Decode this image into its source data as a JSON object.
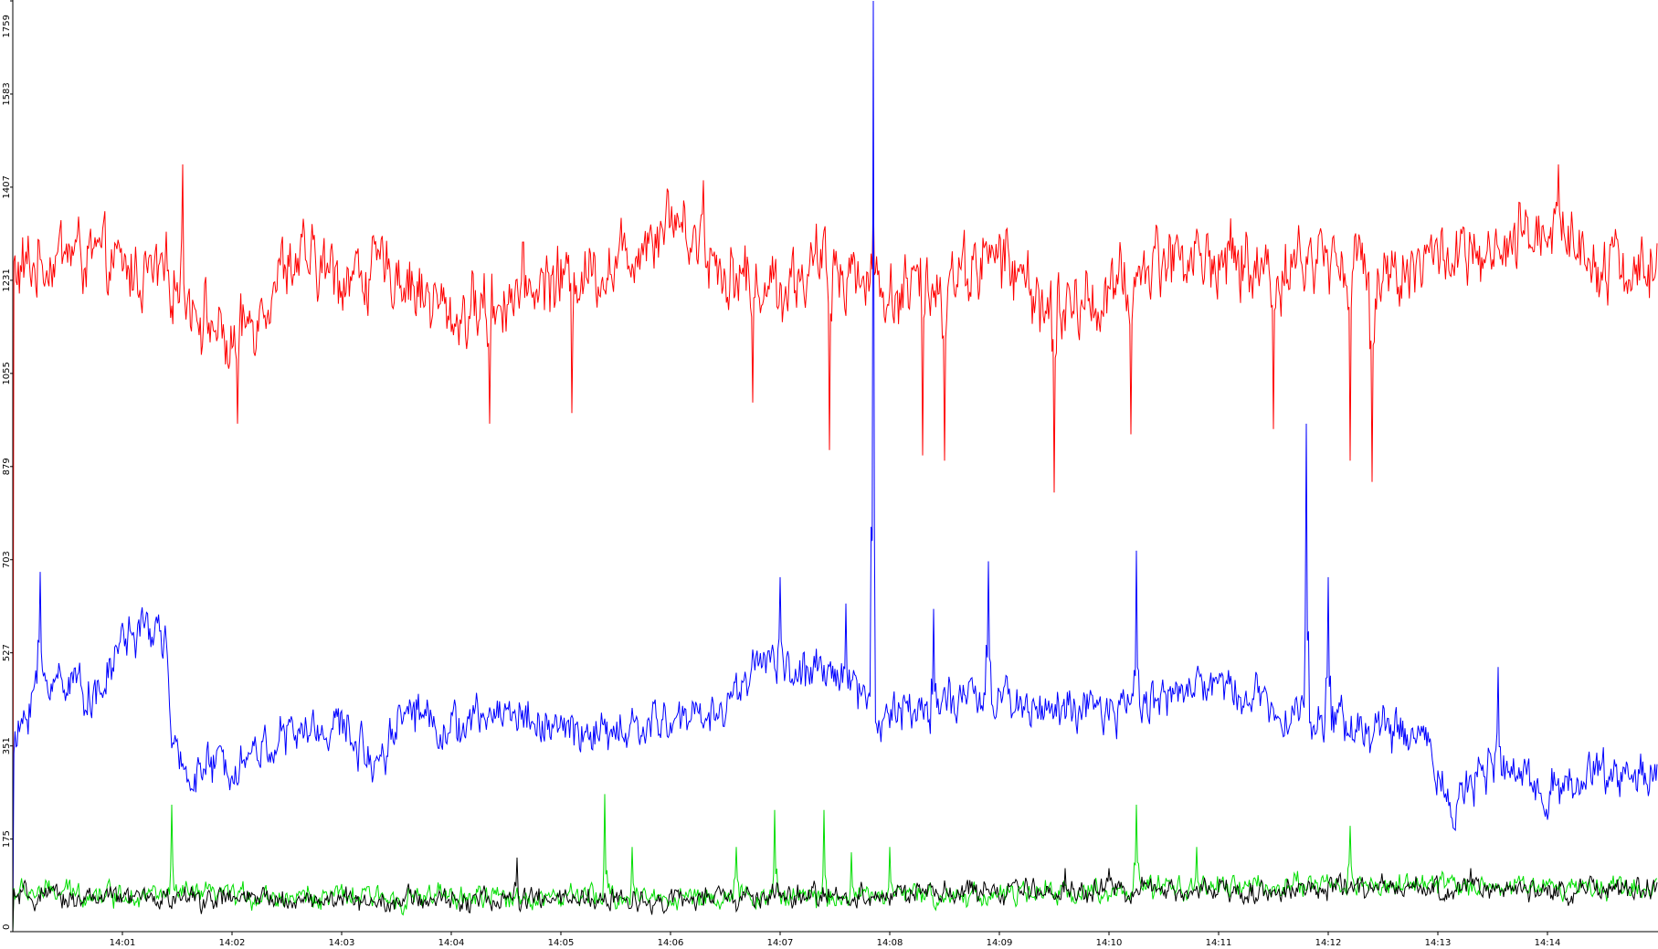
{
  "chart_data": {
    "type": "line",
    "title": "",
    "xlabel": "",
    "ylabel": "",
    "ylim": [
      0,
      1759
    ],
    "y_ticks": [
      0,
      175,
      351,
      527,
      703,
      879,
      1055,
      1231,
      1407,
      1583,
      1759
    ],
    "x_ticks": [
      "14:01",
      "14:02",
      "14:03",
      "14:04",
      "14:05",
      "14:06",
      "14:07",
      "14:08",
      "14:09",
      "14:10",
      "14:11",
      "14:12",
      "14:13",
      "14:14"
    ],
    "x_range_minutes": [
      0,
      15.0
    ],
    "grid": false,
    "legend": "none",
    "series": [
      {
        "color": "#ff0000",
        "profile": [
          [
            0,
            1240
          ],
          [
            0.5,
            1290
          ],
          [
            1,
            1250
          ],
          [
            1.5,
            1230
          ],
          [
            2,
            1100
          ],
          [
            2.5,
            1270
          ],
          [
            3,
            1240
          ],
          [
            3.5,
            1250
          ],
          [
            4,
            1160
          ],
          [
            4.5,
            1200
          ],
          [
            5,
            1240
          ],
          [
            5.5,
            1260
          ],
          [
            6,
            1360
          ],
          [
            6.5,
            1250
          ],
          [
            7,
            1220
          ],
          [
            7.5,
            1270
          ],
          [
            8,
            1200
          ],
          [
            8.5,
            1240
          ],
          [
            9,
            1280
          ],
          [
            9.5,
            1170
          ],
          [
            10,
            1200
          ],
          [
            10.5,
            1280
          ],
          [
            11,
            1270
          ],
          [
            11.5,
            1250
          ],
          [
            12,
            1280
          ],
          [
            12.5,
            1240
          ],
          [
            13,
            1280
          ],
          [
            13.5,
            1260
          ],
          [
            14,
            1340
          ],
          [
            14.5,
            1270
          ],
          [
            15,
            1240
          ]
        ],
        "spikes": [
          [
            1.55,
            1450
          ],
          [
            2.05,
            960
          ],
          [
            4.35,
            960
          ],
          [
            5.1,
            980
          ],
          [
            6.3,
            1420
          ],
          [
            6.75,
            1000
          ],
          [
            7.45,
            910
          ],
          [
            7.85,
            1400
          ],
          [
            8.3,
            900
          ],
          [
            8.5,
            890
          ],
          [
            9.5,
            830
          ],
          [
            10.2,
            940
          ],
          [
            11.5,
            950
          ],
          [
            12.2,
            890
          ],
          [
            12.4,
            850
          ],
          [
            14.1,
            1450
          ]
        ],
        "noise": 55
      },
      {
        "color": "#0000ff",
        "profile": [
          [
            0,
            330
          ],
          [
            0.2,
            470
          ],
          [
            0.5,
            480
          ],
          [
            0.8,
            440
          ],
          [
            1.0,
            560
          ],
          [
            1.3,
            570
          ],
          [
            1.4,
            560
          ],
          [
            1.45,
            330
          ],
          [
            1.6,
            300
          ],
          [
            2,
            320
          ],
          [
            2.5,
            370
          ],
          [
            3,
            390
          ],
          [
            3.3,
            320
          ],
          [
            3.6,
            430
          ],
          [
            4,
            380
          ],
          [
            4.5,
            420
          ],
          [
            5,
            380
          ],
          [
            5.5,
            370
          ],
          [
            6,
            400
          ],
          [
            6.5,
            420
          ],
          [
            6.8,
            520
          ],
          [
            7.2,
            480
          ],
          [
            7.6,
            490
          ],
          [
            7.9,
            410
          ],
          [
            8.5,
            430
          ],
          [
            9,
            440
          ],
          [
            9.5,
            420
          ],
          [
            10,
            410
          ],
          [
            10.5,
            450
          ],
          [
            11,
            470
          ],
          [
            11.5,
            430
          ],
          [
            12,
            400
          ],
          [
            12.5,
            380
          ],
          [
            12.9,
            370
          ],
          [
            13.1,
            240
          ],
          [
            13.5,
            310
          ],
          [
            14,
            270
          ],
          [
            14.5,
            300
          ],
          [
            15,
            300
          ]
        ],
        "spikes": [
          [
            0.25,
            680
          ],
          [
            7.0,
            670
          ],
          [
            7.6,
            620
          ],
          [
            7.85,
            1759
          ],
          [
            8.4,
            610
          ],
          [
            8.9,
            700
          ],
          [
            10.25,
            720
          ],
          [
            11.8,
            960
          ],
          [
            12.0,
            670
          ],
          [
            13.55,
            500
          ]
        ],
        "noise": 35
      },
      {
        "color": "#00dd00",
        "profile": [
          [
            0,
            75
          ],
          [
            3,
            65
          ],
          [
            6,
            65
          ],
          [
            9,
            70
          ],
          [
            12,
            90
          ],
          [
            15,
            85
          ]
        ],
        "spikes": [
          [
            1.45,
            240
          ],
          [
            5.4,
            260
          ],
          [
            5.65,
            160
          ],
          [
            6.6,
            160
          ],
          [
            6.95,
            230
          ],
          [
            7.4,
            230
          ],
          [
            7.65,
            150
          ],
          [
            8.0,
            160
          ],
          [
            10.25,
            240
          ],
          [
            10.8,
            160
          ],
          [
            12.2,
            200
          ]
        ],
        "noise": 18
      },
      {
        "color": "#000000",
        "profile": [
          [
            0,
            65
          ],
          [
            3,
            60
          ],
          [
            6,
            60
          ],
          [
            9,
            75
          ],
          [
            12,
            80
          ],
          [
            15,
            80
          ]
        ],
        "spikes": [
          [
            4.6,
            140
          ],
          [
            9.6,
            120
          ],
          [
            10.0,
            120
          ],
          [
            13.3,
            120
          ]
        ],
        "noise": 18
      }
    ]
  }
}
